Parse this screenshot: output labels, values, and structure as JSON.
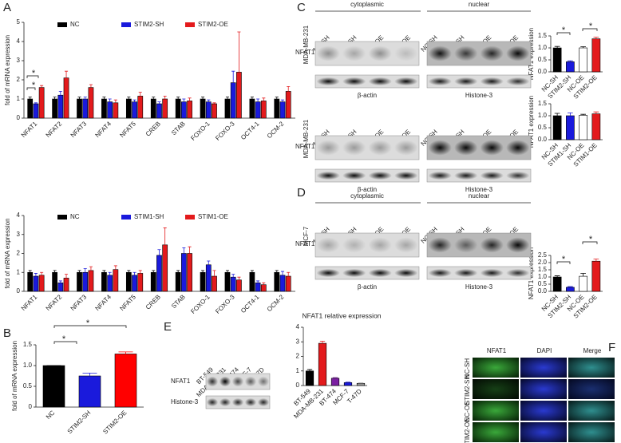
{
  "chart_data": [
    {
      "type": "bar",
      "ylabel": "fold of mRNA expression",
      "categories": [
        "NFAT1",
        "NFAT2",
        "NFAT3",
        "NFAT4",
        "NFAT5",
        "CREB",
        "STAB",
        "FOXO-1",
        "FOXO-3",
        "OCT4-1",
        "OCM-2"
      ],
      "series": [
        {
          "name": "NC",
          "color": "#000000",
          "values": [
            1,
            1,
            1,
            1,
            1,
            1,
            1,
            1,
            1,
            1,
            1
          ],
          "errors": [
            0.1,
            0.1,
            0.1,
            0.1,
            0.1,
            0.1,
            0.1,
            0.1,
            0.1,
            0.1,
            0.1
          ]
        },
        {
          "name": "STIM2-SH",
          "color": "#1a1adc",
          "values": [
            0.75,
            1.2,
            1.0,
            0.85,
            0.85,
            0.75,
            0.85,
            0.85,
            1.85,
            0.85,
            0.85
          ],
          "errors": [
            0.05,
            0.2,
            0.1,
            0.15,
            0.1,
            0.1,
            0.15,
            0.1,
            0.6,
            0.15,
            0.1
          ]
        },
        {
          "name": "STIM2-OE",
          "color": "#e31a1c",
          "values": [
            1.6,
            2.1,
            1.6,
            0.8,
            1.15,
            1.0,
            0.9,
            0.75,
            2.4,
            0.9,
            1.4
          ],
          "errors": [
            0.1,
            0.35,
            0.15,
            0.15,
            0.2,
            0.15,
            0.15,
            0.05,
            2.1,
            0.15,
            0.25
          ]
        }
      ],
      "ylim": [
        0,
        5
      ],
      "yticks": [
        0,
        1,
        2,
        3,
        4,
        5
      ],
      "annotations": [
        "*",
        "*"
      ]
    },
    {
      "type": "bar",
      "ylabel": "fold of mRNA expression",
      "categories": [
        "NFAT1",
        "NFAT2",
        "NFAT3",
        "NFAT4",
        "NFAT5",
        "CREB",
        "STAB",
        "FOXO-1",
        "FOXO-3",
        "OCT4-1",
        "OCM-2"
      ],
      "series": [
        {
          "name": "NC",
          "color": "#000000",
          "values": [
            1,
            1,
            1,
            1,
            1,
            1,
            1,
            1,
            1,
            1,
            1
          ],
          "errors": [
            0.1,
            0.1,
            0.1,
            0.1,
            0.1,
            0.1,
            0.1,
            0.1,
            0.1,
            0.1,
            0.1
          ]
        },
        {
          "name": "STIM1-SH",
          "color": "#1a1adc",
          "values": [
            0.8,
            0.45,
            1.0,
            0.85,
            0.85,
            1.9,
            2.0,
            1.4,
            0.75,
            0.45,
            0.85
          ],
          "errors": [
            0.15,
            0.1,
            0.2,
            0.15,
            0.15,
            0.3,
            0.3,
            0.2,
            0.15,
            0.1,
            0.2
          ]
        },
        {
          "name": "STIM1-OE",
          "color": "#e31a1c",
          "values": [
            0.85,
            0.7,
            1.1,
            1.15,
            0.95,
            2.45,
            2.0,
            0.8,
            0.6,
            0.35,
            0.8
          ],
          "errors": [
            0.15,
            0.2,
            0.2,
            0.2,
            0.15,
            0.9,
            0.35,
            0.3,
            0.15,
            0.1,
            0.2
          ]
        }
      ],
      "ylim": [
        0,
        4
      ],
      "yticks": [
        0,
        1,
        2,
        3,
        4
      ]
    },
    {
      "type": "bar",
      "ylabel": "fold of mRNA expression",
      "categories": [
        "NC",
        "STIM2-SH",
        "STIM2-OE"
      ],
      "values": [
        1.0,
        0.75,
        1.28
      ],
      "errors": [
        0.0,
        0.07,
        0.05
      ],
      "colors": [
        "#000000",
        "#1a1adc",
        "#ff0000"
      ],
      "ylim": [
        0,
        1.5
      ],
      "yticks": [
        0,
        0.5,
        {
          "value": 1,
          "label": "1.0"
        },
        1.5
      ],
      "annotations": [
        "*",
        "*"
      ]
    },
    {
      "type": "bar",
      "ylabel": "NFAT1 expression",
      "categories": [
        "NC-SH",
        "STIM2-SH",
        "NC-OE",
        "STIM2-OE"
      ],
      "values": [
        1.0,
        0.42,
        1.0,
        1.38
      ],
      "errors": [
        0.06,
        0.04,
        0.05,
        0.07
      ],
      "colors": [
        "#000000",
        "#1a1adc",
        "#ffffff",
        "#e31a1c"
      ],
      "ylim": [
        0,
        1.5
      ],
      "yticks": [
        {
          "value": 0,
          "label": "0.0"
        },
        0.5,
        {
          "value": 1,
          "label": "1.0"
        },
        1.5
      ],
      "annotations": [
        "*",
        "*"
      ]
    },
    {
      "type": "bar",
      "ylabel": "NFAT1 expression",
      "categories": [
        "NC-SH",
        "STIM1-SH",
        "NC-OE",
        "STIM1-OE"
      ],
      "values": [
        1.0,
        1.0,
        1.02,
        1.08
      ],
      "errors": [
        0.1,
        0.12,
        0.04,
        0.08
      ],
      "colors": [
        "#000000",
        "#1a1adc",
        "#ffffff",
        "#e31a1c"
      ],
      "ylim": [
        0,
        1.5
      ],
      "yticks": [
        {
          "value": 0,
          "label": "0.0"
        },
        0.5,
        {
          "value": 1,
          "label": "1.0"
        },
        1.5
      ]
    },
    {
      "type": "bar",
      "ylabel": "NFAT1 expression",
      "categories": [
        "NC-SH",
        "STIM2-SH",
        "NC-OE",
        "STIM2-OE"
      ],
      "values": [
        1.0,
        0.28,
        1.05,
        2.1
      ],
      "errors": [
        0.08,
        0.05,
        0.2,
        0.15
      ],
      "colors": [
        "#000000",
        "#1a1adc",
        "#ffffff",
        "#e31a1c"
      ],
      "ylim": [
        0,
        2.5
      ],
      "yticks": [
        {
          "value": 0,
          "label": "0.0"
        },
        0.5,
        {
          "value": 1,
          "label": "1.0"
        },
        1.5,
        {
          "value": 2,
          "label": "2.0"
        },
        2.5
      ],
      "annotations": [
        "*",
        "*"
      ]
    },
    {
      "type": "bar",
      "title": "NFAT1 relative expression",
      "categories": [
        "BT-549",
        "MDA-MB-231",
        "BT-474",
        "MCF-7",
        "T-47D"
      ],
      "values": [
        1.0,
        2.9,
        0.5,
        0.2,
        0.15
      ],
      "errors": [
        0.1,
        0.15,
        0.05,
        0.03,
        0.03
      ],
      "colors": [
        "#000000",
        "#e31a1c",
        "#7b1fa2",
        "#1a1adc",
        "#999999"
      ],
      "ylim": [
        0,
        4
      ],
      "yticks": [
        0,
        1,
        2,
        3,
        4
      ]
    }
  ],
  "panels": [
    "A",
    "B",
    "C",
    "D",
    "E",
    "F"
  ],
  "blot_c": [
    {
      "fractions": [
        "cytoplasmic",
        "nuclear"
      ],
      "cell_line": "MDA-MB-231",
      "lanes": [
        "NC-SH",
        "STIM2-SH",
        "NC-OE",
        "STIM2-OE",
        "NC-SH",
        "STIM2-SH",
        "NC-OE",
        "STIM2-OE"
      ],
      "band": "NFAT1",
      "loading": [
        "β-actin",
        "Histone-3"
      ]
    },
    {
      "cell_line": "MDA-MB-231",
      "lanes": [
        "NC-SH",
        "STIM1-SH",
        "NC-OE",
        "STIM1-OE",
        "NC-SH",
        "STIM1-SH",
        "NC-OE",
        "STIM1-OE"
      ],
      "band": "NFAT1",
      "loading": [
        "β-actin",
        "Histone-3"
      ]
    }
  ],
  "blot_d": {
    "fractions": [
      "cytoplasmic",
      "nuclear"
    ],
    "cell_line": "MCF-7",
    "lanes": [
      "NC-SH",
      "STIM2-SH",
      "NC-OE",
      "STIM2-OE",
      "NC-SH",
      "STIM2-SH",
      "NC-OE",
      "STIM2-OE"
    ],
    "band": "NFAT1",
    "loading": [
      "β-actin",
      "Histone-3"
    ]
  },
  "blot_e": {
    "lanes": [
      "BT-549",
      "MDA-MB-231",
      "BT-474",
      "MCF-7",
      "T-47D"
    ],
    "bands": [
      "NFAT1",
      "Histone-3"
    ]
  },
  "micrographs": {
    "columns": [
      "NFAT1",
      "DAPI",
      "Merge"
    ],
    "rows": [
      "NC-SH",
      "STIM2-SH",
      "NC-OE",
      "STIM2-OE"
    ]
  }
}
